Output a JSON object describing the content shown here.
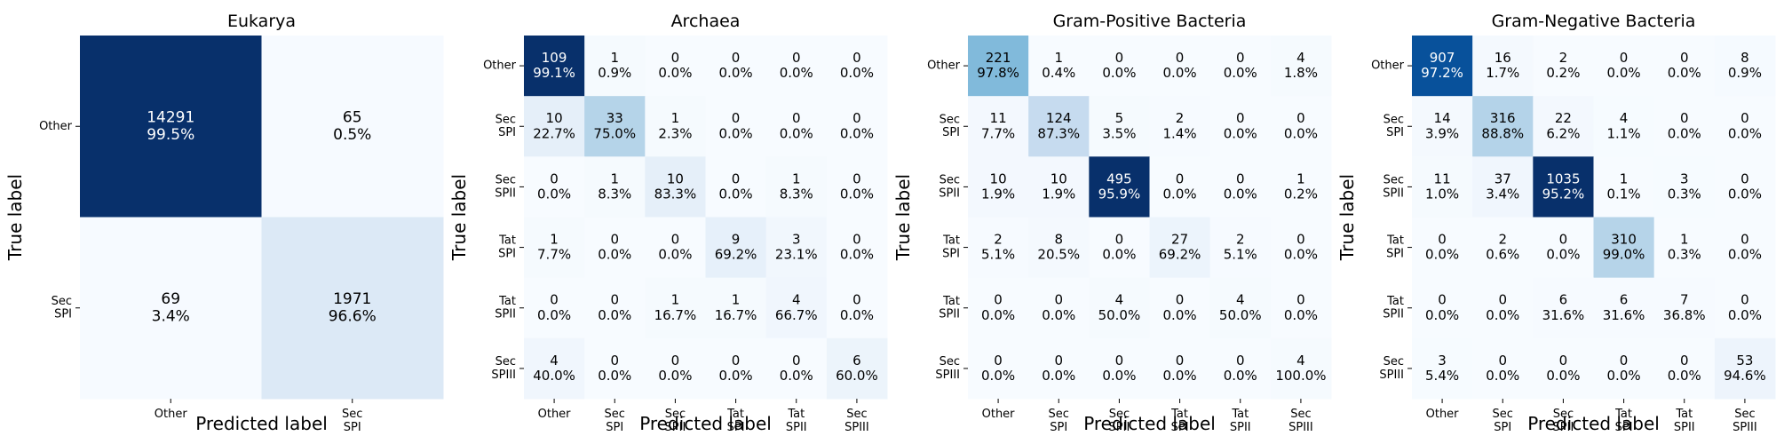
{
  "figure": {
    "panels_description": "Four confusion matrices of signal peptide type predictions"
  },
  "chart_data": [
    {
      "type": "heatmap",
      "title": "Eukarya",
      "xlabel": "Predicted label",
      "ylabel": "True label",
      "labels": [
        "Other",
        "Sec\nSPI"
      ],
      "counts": [
        [
          14291,
          65
        ],
        [
          69,
          1971
        ]
      ],
      "percents": [
        "99.5%",
        "0.5%",
        "3.4%",
        "96.6%"
      ],
      "colorbar": false,
      "colormap": "Blues"
    },
    {
      "type": "heatmap",
      "title": "Archaea",
      "xlabel": "Predicted label",
      "ylabel": "True label",
      "labels": [
        "Other",
        "Sec\nSPI",
        "Sec\nSPII",
        "Tat\nSPI",
        "Tat\nSPII",
        "Sec\nSPIII"
      ],
      "counts": [
        [
          109,
          1,
          0,
          0,
          0,
          0
        ],
        [
          10,
          33,
          1,
          0,
          0,
          0
        ],
        [
          0,
          1,
          10,
          0,
          1,
          0
        ],
        [
          1,
          0,
          0,
          9,
          3,
          0
        ],
        [
          0,
          0,
          1,
          1,
          4,
          0
        ],
        [
          4,
          0,
          0,
          0,
          0,
          6
        ]
      ],
      "percents": [
        "99.1%",
        "0.9%",
        "0.0%",
        "0.0%",
        "0.0%",
        "0.0%",
        "22.7%",
        "75.0%",
        "2.3%",
        "0.0%",
        "0.0%",
        "0.0%",
        "0.0%",
        "8.3%",
        "83.3%",
        "0.0%",
        "8.3%",
        "0.0%",
        "7.7%",
        "0.0%",
        "0.0%",
        "69.2%",
        "23.1%",
        "0.0%",
        "0.0%",
        "0.0%",
        "16.7%",
        "16.7%",
        "66.7%",
        "0.0%",
        "40.0%",
        "0.0%",
        "0.0%",
        "0.0%",
        "0.0%",
        "60.0%"
      ],
      "colorbar": false,
      "colormap": "Blues"
    },
    {
      "type": "heatmap",
      "title": "Gram-Positive Bacteria",
      "xlabel": "Predicted label",
      "ylabel": "True label",
      "labels": [
        "Other",
        "Sec\nSPI",
        "Sec\nSPII",
        "Tat\nSPI",
        "Tat\nSPII",
        "Sec\nSPIII"
      ],
      "counts": [
        [
          221,
          1,
          0,
          0,
          0,
          4
        ],
        [
          11,
          124,
          5,
          2,
          0,
          0
        ],
        [
          10,
          10,
          495,
          0,
          0,
          1
        ],
        [
          2,
          8,
          0,
          27,
          2,
          0
        ],
        [
          0,
          0,
          4,
          0,
          4,
          0
        ],
        [
          0,
          0,
          0,
          0,
          0,
          4
        ]
      ],
      "percents": [
        "97.8%",
        "0.4%",
        "0.0%",
        "0.0%",
        "0.0%",
        "1.8%",
        "7.7%",
        "87.3%",
        "3.5%",
        "1.4%",
        "0.0%",
        "0.0%",
        "1.9%",
        "1.9%",
        "95.9%",
        "0.0%",
        "0.0%",
        "0.2%",
        "5.1%",
        "20.5%",
        "0.0%",
        "69.2%",
        "5.1%",
        "0.0%",
        "0.0%",
        "0.0%",
        "50.0%",
        "0.0%",
        "50.0%",
        "0.0%",
        "0.0%",
        "0.0%",
        "0.0%",
        "0.0%",
        "0.0%",
        "100.0%"
      ],
      "colorbar": false,
      "colormap": "Blues"
    },
    {
      "type": "heatmap",
      "title": "Gram-Negative Bacteria",
      "xlabel": "Predicted label",
      "ylabel": "True label",
      "labels": [
        "Other",
        "Sec\nSPI",
        "Sec\nSPII",
        "Tat\nSPI",
        "Tat\nSPII",
        "Sec\nSPIII"
      ],
      "counts": [
        [
          907,
          16,
          2,
          0,
          0,
          8
        ],
        [
          14,
          316,
          22,
          4,
          0,
          0
        ],
        [
          11,
          37,
          1035,
          1,
          3,
          0
        ],
        [
          0,
          2,
          0,
          310,
          1,
          0
        ],
        [
          0,
          0,
          6,
          6,
          7,
          0
        ],
        [
          3,
          0,
          0,
          0,
          0,
          53
        ]
      ],
      "percents": [
        "97.2%",
        "1.7%",
        "0.2%",
        "0.0%",
        "0.0%",
        "0.9%",
        "3.9%",
        "88.8%",
        "6.2%",
        "1.1%",
        "0.0%",
        "0.0%",
        "1.0%",
        "3.4%",
        "95.2%",
        "0.1%",
        "0.3%",
        "0.0%",
        "0.0%",
        "0.6%",
        "0.0%",
        "99.0%",
        "0.3%",
        "0.0%",
        "0.0%",
        "0.0%",
        "31.6%",
        "31.6%",
        "36.8%",
        "0.0%",
        "5.4%",
        "0.0%",
        "0.0%",
        "0.0%",
        "0.0%",
        "94.6%"
      ],
      "colorbar": false,
      "colormap": "Blues"
    }
  ]
}
